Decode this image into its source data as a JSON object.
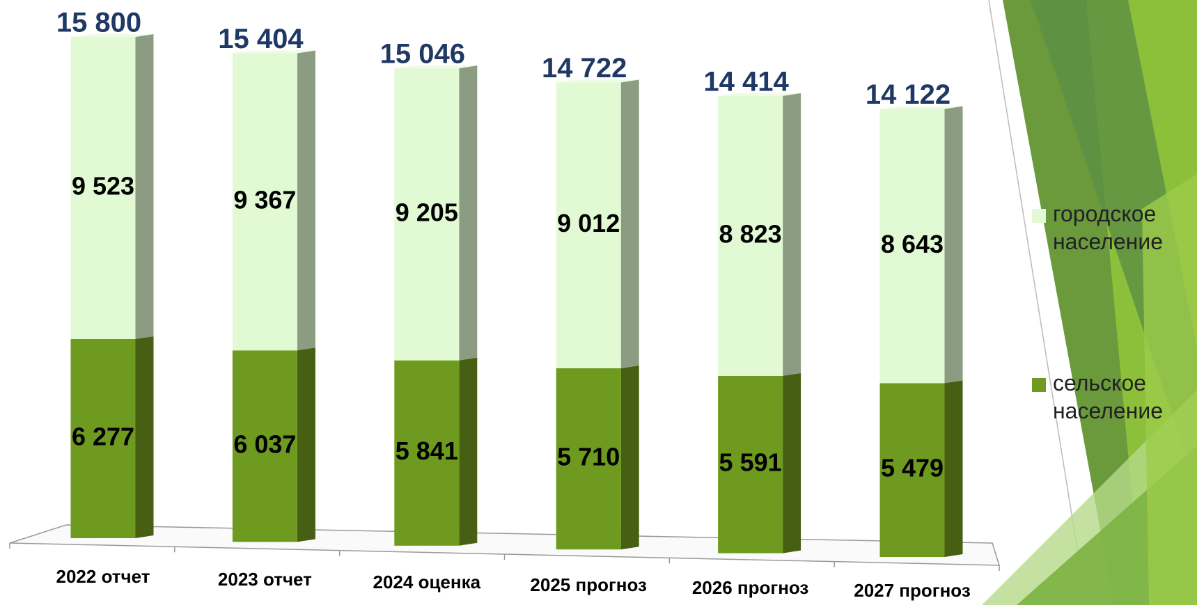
{
  "chart_data": {
    "type": "stacked_bar_3d",
    "categories": [
      "2022 отчет",
      "2023 отчет",
      "2024 оценка",
      "2025 прогноз",
      "2026 прогноз",
      "2027 прогноз"
    ],
    "series": [
      {
        "name": "сельское население",
        "color": "#6f9a20",
        "side_color": "#465f12",
        "values": [
          6277,
          6037,
          5841,
          5710,
          5591,
          5479
        ],
        "value_labels": [
          "6 277",
          "6 037",
          "5 841",
          "5 710",
          "5 591",
          "5 479"
        ]
      },
      {
        "name": "городское население",
        "color": "#e2fad3",
        "side_color": "#8c9c83",
        "values": [
          9523,
          9367,
          9205,
          9012,
          8823,
          8643
        ],
        "value_labels": [
          "9 523",
          "9 367",
          "9 205",
          "9 012",
          "8 823",
          "8 643"
        ]
      }
    ],
    "totals": [
      15800,
      15404,
      15046,
      14722,
      14414,
      14122
    ],
    "total_labels": [
      "15 800",
      "15 404",
      "15 046",
      "14 722",
      "14 414",
      "14 122"
    ],
    "legend": "right"
  }
}
